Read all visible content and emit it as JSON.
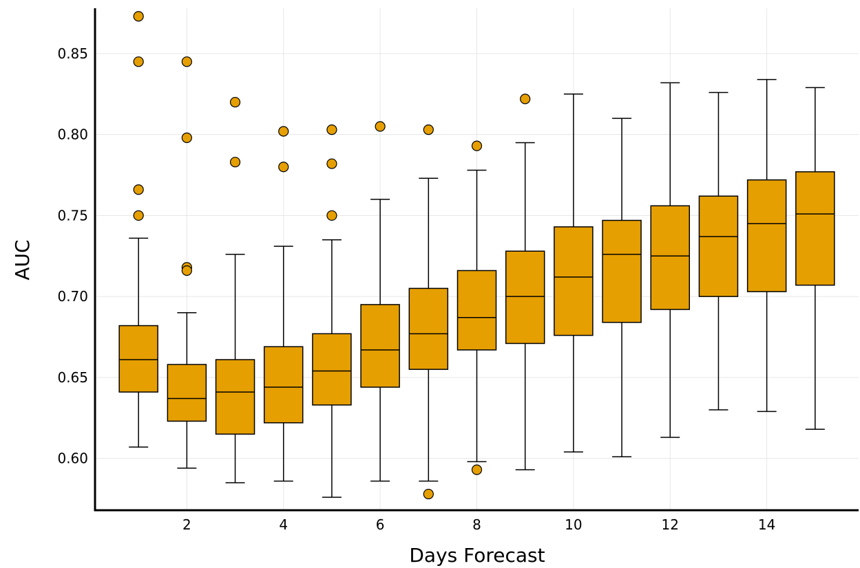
{
  "chart_data": {
    "type": "boxplot",
    "xlabel": "Days Forecast",
    "ylabel": "AUC",
    "xlim": [
      0.1,
      15.9
    ],
    "ylim": [
      0.568,
      0.878
    ],
    "xticks": [
      2,
      4,
      6,
      8,
      10,
      12,
      14
    ],
    "yticks": [
      0.6,
      0.65,
      0.7,
      0.75,
      0.8,
      0.85
    ],
    "grid": true,
    "box_color": "#e69f00",
    "boxes": [
      {
        "x": 1,
        "whisker_low": 0.607,
        "q1": 0.641,
        "median": 0.661,
        "q3": 0.682,
        "whisker_high": 0.736,
        "outliers": [
          0.873,
          0.845,
          0.766,
          0.75
        ]
      },
      {
        "x": 2,
        "whisker_low": 0.594,
        "q1": 0.623,
        "median": 0.637,
        "q3": 0.658,
        "whisker_high": 0.69,
        "outliers": [
          0.845,
          0.798,
          0.718,
          0.716
        ]
      },
      {
        "x": 3,
        "whisker_low": 0.585,
        "q1": 0.615,
        "median": 0.641,
        "q3": 0.661,
        "whisker_high": 0.726,
        "outliers": [
          0.82,
          0.783
        ]
      },
      {
        "x": 4,
        "whisker_low": 0.586,
        "q1": 0.622,
        "median": 0.644,
        "q3": 0.669,
        "whisker_high": 0.731,
        "outliers": [
          0.802,
          0.78
        ]
      },
      {
        "x": 5,
        "whisker_low": 0.576,
        "q1": 0.633,
        "median": 0.654,
        "q3": 0.677,
        "whisker_high": 0.735,
        "outliers": [
          0.803,
          0.782,
          0.75
        ]
      },
      {
        "x": 6,
        "whisker_low": 0.586,
        "q1": 0.644,
        "median": 0.667,
        "q3": 0.695,
        "whisker_high": 0.76,
        "outliers": [
          0.805
        ]
      },
      {
        "x": 7,
        "whisker_low": 0.586,
        "q1": 0.655,
        "median": 0.677,
        "q3": 0.705,
        "whisker_high": 0.773,
        "outliers": [
          0.803,
          0.578
        ]
      },
      {
        "x": 8,
        "whisker_low": 0.598,
        "q1": 0.667,
        "median": 0.687,
        "q3": 0.716,
        "whisker_high": 0.778,
        "outliers": [
          0.793,
          0.593
        ]
      },
      {
        "x": 9,
        "whisker_low": 0.593,
        "q1": 0.671,
        "median": 0.7,
        "q3": 0.728,
        "whisker_high": 0.795,
        "outliers": [
          0.822
        ]
      },
      {
        "x": 10,
        "whisker_low": 0.604,
        "q1": 0.676,
        "median": 0.712,
        "q3": 0.743,
        "whisker_high": 0.825,
        "outliers": []
      },
      {
        "x": 11,
        "whisker_low": 0.601,
        "q1": 0.684,
        "median": 0.726,
        "q3": 0.747,
        "whisker_high": 0.81,
        "outliers": []
      },
      {
        "x": 12,
        "whisker_low": 0.613,
        "q1": 0.692,
        "median": 0.725,
        "q3": 0.756,
        "whisker_high": 0.832,
        "outliers": []
      },
      {
        "x": 13,
        "whisker_low": 0.63,
        "q1": 0.7,
        "median": 0.737,
        "q3": 0.762,
        "whisker_high": 0.826,
        "outliers": []
      },
      {
        "x": 14,
        "whisker_low": 0.629,
        "q1": 0.703,
        "median": 0.745,
        "q3": 0.772,
        "whisker_high": 0.834,
        "outliers": []
      },
      {
        "x": 15,
        "whisker_low": 0.618,
        "q1": 0.707,
        "median": 0.751,
        "q3": 0.777,
        "whisker_high": 0.829,
        "outliers": []
      }
    ]
  }
}
